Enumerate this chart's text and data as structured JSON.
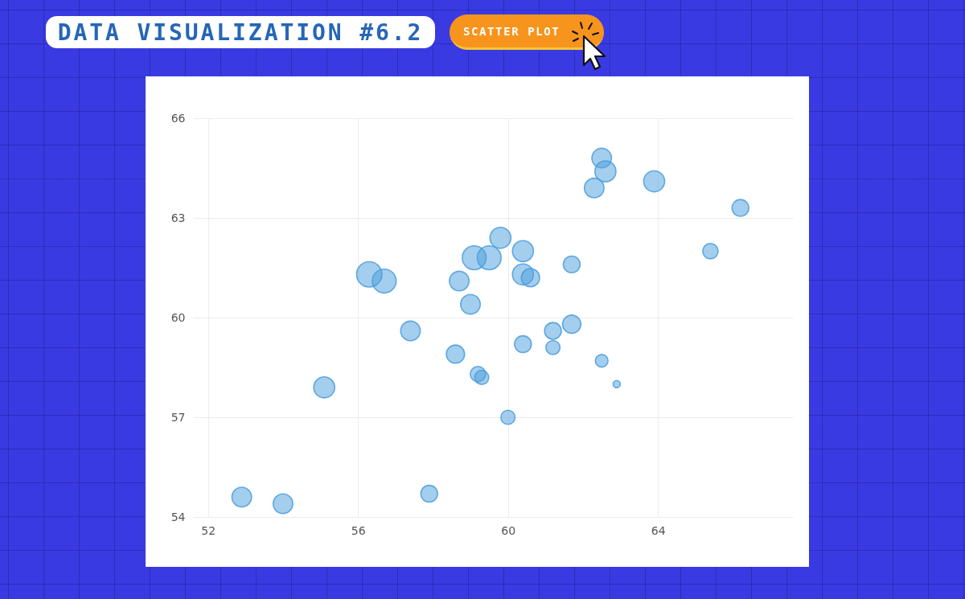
{
  "chart_data": {
    "type": "bubble",
    "title": "DATA VISUALIZATION #6.2",
    "subtitle": "SCATTER PLOT",
    "x": [
      52.9,
      54.0,
      55.1,
      57.9,
      60.0,
      57.4,
      58.6,
      59.2,
      59.3,
      60.4,
      61.2,
      61.2,
      61.7,
      62.5,
      62.9,
      66.2,
      65.4,
      63.9,
      62.5,
      62.6,
      62.3,
      61.7,
      60.4,
      59.8,
      59.1,
      59.5,
      60.4,
      60.6,
      58.7,
      59.0,
      56.3,
      56.7
    ],
    "values": [
      54.6,
      54.4,
      57.9,
      54.7,
      57.0,
      59.6,
      58.9,
      58.3,
      58.2,
      59.2,
      59.6,
      59.1,
      59.8,
      58.7,
      58.0,
      63.3,
      62.0,
      64.1,
      64.8,
      64.4,
      63.9,
      61.6,
      62.0,
      62.4,
      61.8,
      61.8,
      61.3,
      61.2,
      61.1,
      60.4,
      61.3,
      61.1
    ],
    "sizes": [
      0.6,
      0.6,
      0.69,
      0.44,
      0.31,
      0.6,
      0.52,
      0.37,
      0.31,
      0.44,
      0.44,
      0.31,
      0.52,
      0.25,
      0.08,
      0.44,
      0.37,
      0.69,
      0.6,
      0.69,
      0.6,
      0.44,
      0.69,
      0.69,
      0.89,
      0.89,
      0.69,
      0.52,
      0.6,
      0.6,
      1,
      0.89
    ],
    "color": "#4a9edc",
    "xlim": [
      51.6,
      67.6
    ],
    "ylim": [
      54,
      66
    ],
    "xticks": [
      52,
      56,
      60,
      64
    ],
    "yticks": [
      54,
      57,
      60,
      63,
      66
    ],
    "grid": true
  }
}
